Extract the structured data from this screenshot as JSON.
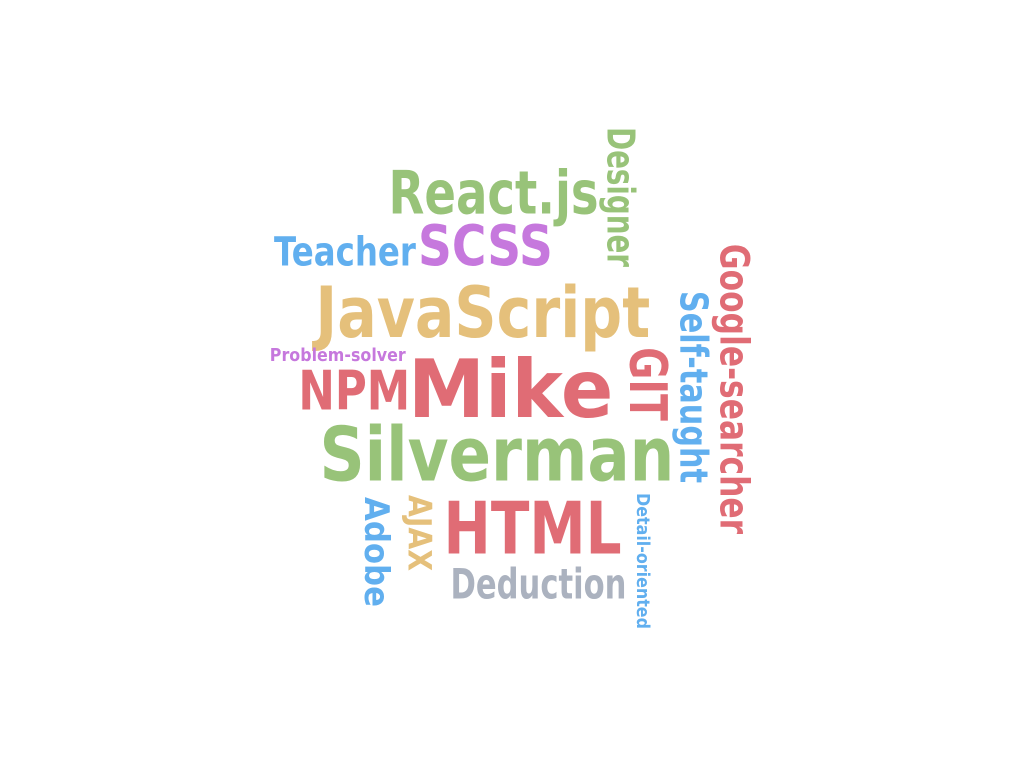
{
  "colors": {
    "red": "#e06c75",
    "green": "#98c379",
    "yellow": "#e5c07b",
    "purple": "#c678dd",
    "blue": "#61afef",
    "gray": "#abb2bf"
  },
  "words": {
    "mike": "Mike",
    "silverman": "Silverman",
    "javascript": "JavaScript",
    "html": "HTML",
    "reactjs": "React.js",
    "scss": "SCSS",
    "npm": "NPM",
    "git": "GIT",
    "deduction": "Deduction",
    "teacher": "Teacher",
    "designer": "Designer",
    "google_searcher": "Google-searcher",
    "self_taught": "Self-taught",
    "adobe": "Adobe",
    "ajax": "AJAX",
    "problem_solver": "Problem-solver",
    "detail_oriented": "Detail-oriented"
  }
}
